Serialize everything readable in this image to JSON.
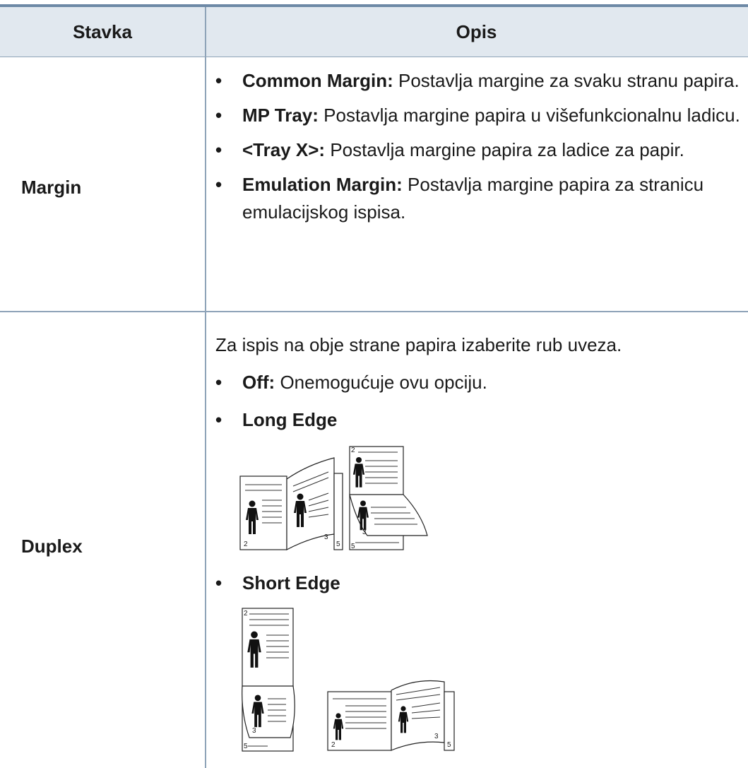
{
  "table": {
    "header": [
      "Stavka",
      "Opis"
    ],
    "rows": [
      {
        "item": "Margin",
        "bullets": [
          {
            "term": "Common Margin:",
            "text": "Postavlja margine za svaku stranu papira."
          },
          {
            "term": "MP Tray:",
            "text": "Postavlja margine papira u višefunkcionalnu ladicu."
          },
          {
            "term": "<Tray X>:",
            "text": "Postavlja margine papira za ladice za papir."
          },
          {
            "term": "Emulation Margin:",
            "text": "Postavlja margine papira za stranicu emulacijskog ispisa."
          }
        ]
      },
      {
        "item": "Duplex",
        "intro": "Za ispis na obje strane papira izaberite rub uveza.",
        "bullets": [
          {
            "term": "Off:",
            "text": "Onemogućuje ovu opciju."
          },
          {
            "term": "Long Edge",
            "figure_labels": [
              "2",
              "3",
              "5",
              "2",
              "3",
              "5"
            ]
          },
          {
            "term": "Short Edge",
            "figure_labels": [
              "2",
              "3",
              "5",
              "2",
              "3",
              "5"
            ]
          }
        ]
      }
    ]
  }
}
